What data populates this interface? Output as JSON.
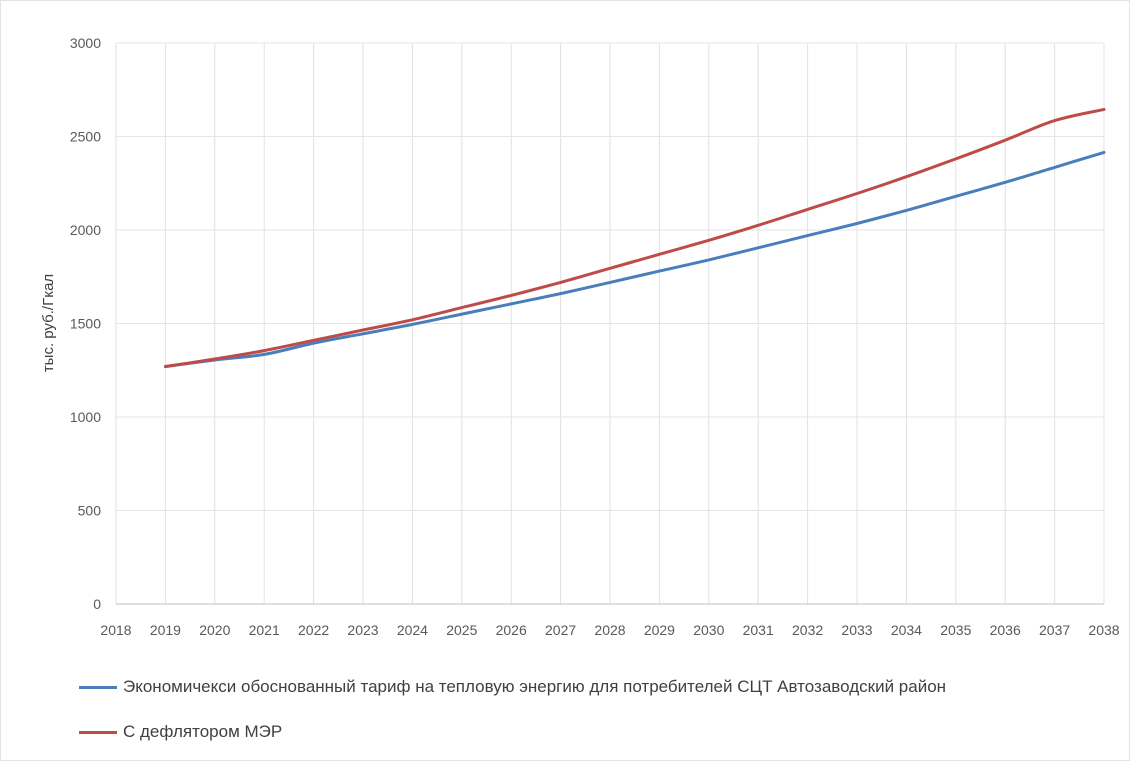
{
  "chart_data": {
    "type": "line",
    "title": "",
    "xlabel": "",
    "ylabel": "тыс. руб./Гкал",
    "x": [
      2018,
      2019,
      2020,
      2021,
      2022,
      2023,
      2024,
      2025,
      2026,
      2027,
      2028,
      2029,
      2030,
      2031,
      2032,
      2033,
      2034,
      2035,
      2036,
      2037,
      2038
    ],
    "x_tick_labels": [
      "2018",
      "2019",
      "2020",
      "2021",
      "2022",
      "2023",
      "2024",
      "2025",
      "2026",
      "2027",
      "2028",
      "2029",
      "2030",
      "2031",
      "2032",
      "2033",
      "2034",
      "2035",
      "2036",
      "2037",
      "2038"
    ],
    "ylim": [
      0,
      3000
    ],
    "y_ticks": [
      0,
      500,
      1000,
      1500,
      2000,
      2500,
      3000
    ],
    "y_tick_labels": [
      "0",
      "500",
      "1000",
      "1500",
      "2000",
      "2500",
      "3000"
    ],
    "grid": "vertical",
    "legend_position": "bottom",
    "series": [
      {
        "name": "Экономичекси обоснованный тариф на тепловую энергию для потребителей СЦТ Автозаводский район",
        "color": "#4a7ebb",
        "x": [
          2019,
          2020,
          2021,
          2022,
          2023,
          2024,
          2025,
          2026,
          2027,
          2028,
          2029,
          2030,
          2031,
          2032,
          2033,
          2034,
          2035,
          2036,
          2037,
          2038
        ],
        "values": [
          1270,
          1305,
          1335,
          1395,
          1445,
          1495,
          1550,
          1605,
          1660,
          1720,
          1780,
          1840,
          1905,
          1970,
          2035,
          2105,
          2180,
          2255,
          2335,
          2415
        ]
      },
      {
        "name": "С дефлятором МЭР",
        "color": "#be4b48",
        "x": [
          2019,
          2020,
          2021,
          2022,
          2023,
          2024,
          2025,
          2026,
          2027,
          2028,
          2029,
          2030,
          2031,
          2032,
          2033,
          2034,
          2035,
          2036,
          2037,
          2038
        ],
        "values": [
          1270,
          1310,
          1355,
          1410,
          1465,
          1520,
          1585,
          1650,
          1720,
          1795,
          1870,
          1945,
          2025,
          2110,
          2195,
          2285,
          2380,
          2480,
          2585,
          2645
        ]
      }
    ]
  }
}
